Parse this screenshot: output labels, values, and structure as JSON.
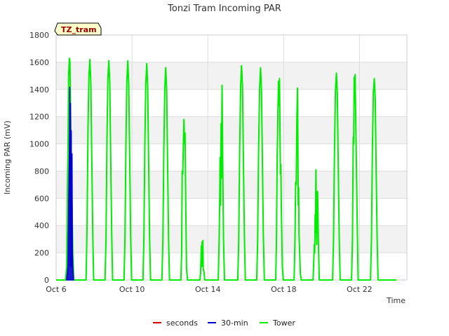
{
  "chart_data": {
    "type": "line",
    "title": "Tonzi Tram Incoming PAR",
    "xlabel": "Time",
    "ylabel": "Incoming PAR (mV)",
    "annotation": "TZ_tram",
    "xlim_days": [
      6,
      24.5
    ],
    "ylim": [
      0,
      1800
    ],
    "y_ticks": [
      0,
      200,
      400,
      600,
      800,
      1000,
      1200,
      1400,
      1600,
      1800
    ],
    "x_ticks": [
      {
        "day": 6,
        "label": "Oct 6"
      },
      {
        "day": 10,
        "label": "Oct 10"
      },
      {
        "day": 14,
        "label": "Oct 14"
      },
      {
        "day": 18,
        "label": "Oct 18"
      },
      {
        "day": 22,
        "label": "Oct 22"
      }
    ],
    "grid": true,
    "legend_position": "bottom-center",
    "colors": {
      "seconds": "#cc0000",
      "30-min": "#0000cc",
      "Tower": "#00ee00",
      "band": "#f2f2f2",
      "grid": "#dddddd",
      "annotation_fill": "#ffffcc",
      "annotation_text": "#990000"
    },
    "series": [
      {
        "name": "seconds",
        "color": "#cc0000",
        "points": []
      },
      {
        "name": "30-min",
        "color": "#0000cc",
        "dense": true,
        "points": [
          [
            6.55,
            0
          ],
          [
            6.62,
            100
          ],
          [
            6.66,
            600
          ],
          [
            6.7,
            1000
          ],
          [
            6.72,
            1420
          ],
          [
            6.74,
            100
          ],
          [
            6.76,
            1300
          ],
          [
            6.78,
            100
          ],
          [
            6.8,
            1100
          ],
          [
            6.82,
            90
          ],
          [
            6.84,
            930
          ],
          [
            6.86,
            200
          ],
          [
            6.88,
            100
          ],
          [
            6.92,
            0
          ]
        ]
      },
      {
        "name": "Tower",
        "color": "#00ee00",
        "points": [
          [
            6.0,
            0
          ],
          [
            6.4,
            0
          ],
          [
            6.5,
            0
          ],
          [
            6.56,
            100
          ],
          [
            6.6,
            700
          ],
          [
            6.63,
            1000
          ],
          [
            6.66,
            1500
          ],
          [
            6.7,
            1630
          ],
          [
            6.73,
            1600
          ],
          [
            6.77,
            1150
          ],
          [
            6.82,
            700
          ],
          [
            6.88,
            200
          ],
          [
            6.93,
            0
          ],
          [
            7.48,
            0
          ],
          [
            7.58,
            0
          ],
          [
            7.63,
            400
          ],
          [
            7.68,
            1100
          ],
          [
            7.73,
            1500
          ],
          [
            7.78,
            1620
          ],
          [
            7.83,
            1450
          ],
          [
            7.88,
            900
          ],
          [
            7.93,
            350
          ],
          [
            7.98,
            0
          ],
          [
            8.45,
            0
          ],
          [
            8.58,
            0
          ],
          [
            8.63,
            300
          ],
          [
            8.68,
            1000
          ],
          [
            8.73,
            1480
          ],
          [
            8.78,
            1610
          ],
          [
            8.83,
            1450
          ],
          [
            8.88,
            900
          ],
          [
            8.93,
            350
          ],
          [
            8.98,
            0
          ],
          [
            9.45,
            0
          ],
          [
            9.58,
            0
          ],
          [
            9.63,
            300
          ],
          [
            9.68,
            1000
          ],
          [
            9.73,
            1460
          ],
          [
            9.78,
            1610
          ],
          [
            9.83,
            1440
          ],
          [
            9.88,
            880
          ],
          [
            9.93,
            330
          ],
          [
            9.98,
            0
          ],
          [
            10.45,
            0
          ],
          [
            10.58,
            0
          ],
          [
            10.63,
            300
          ],
          [
            10.68,
            1000
          ],
          [
            10.73,
            1440
          ],
          [
            10.78,
            1590
          ],
          [
            10.83,
            1420
          ],
          [
            10.88,
            860
          ],
          [
            10.93,
            320
          ],
          [
            10.98,
            0
          ],
          [
            11.45,
            0
          ],
          [
            11.58,
            0
          ],
          [
            11.63,
            300
          ],
          [
            11.68,
            950
          ],
          [
            11.73,
            1400
          ],
          [
            11.78,
            1560
          ],
          [
            11.83,
            1400
          ],
          [
            11.88,
            850
          ],
          [
            11.93,
            300
          ],
          [
            11.98,
            0
          ],
          [
            12.45,
            0
          ],
          [
            12.58,
            0
          ],
          [
            12.62,
            200
          ],
          [
            12.65,
            800
          ],
          [
            12.68,
            780
          ],
          [
            12.71,
            1000
          ],
          [
            12.74,
            1180
          ],
          [
            12.77,
            1000
          ],
          [
            12.8,
            1080
          ],
          [
            12.84,
            500
          ],
          [
            12.88,
            80
          ],
          [
            12.93,
            0
          ],
          [
            13.45,
            0
          ],
          [
            13.58,
            0
          ],
          [
            13.62,
            50
          ],
          [
            13.66,
            250
          ],
          [
            13.68,
            100
          ],
          [
            13.7,
            280
          ],
          [
            13.72,
            180
          ],
          [
            13.74,
            290
          ],
          [
            13.76,
            80
          ],
          [
            13.8,
            60
          ],
          [
            13.84,
            0
          ],
          [
            14.45,
            0
          ],
          [
            14.55,
            0
          ],
          [
            14.6,
            300
          ],
          [
            14.63,
            600
          ],
          [
            14.65,
            900
          ],
          [
            14.67,
            550
          ],
          [
            14.7,
            1150
          ],
          [
            14.72,
            750
          ],
          [
            14.75,
            1430
          ],
          [
            14.79,
            800
          ],
          [
            14.83,
            300
          ],
          [
            14.88,
            0
          ],
          [
            15.45,
            0
          ],
          [
            15.58,
            0
          ],
          [
            15.63,
            300
          ],
          [
            15.68,
            950
          ],
          [
            15.73,
            1420
          ],
          [
            15.78,
            1575
          ],
          [
            15.83,
            1420
          ],
          [
            15.88,
            860
          ],
          [
            15.93,
            320
          ],
          [
            15.98,
            0
          ],
          [
            16.45,
            0
          ],
          [
            16.58,
            0
          ],
          [
            16.63,
            300
          ],
          [
            16.68,
            950
          ],
          [
            16.73,
            1400
          ],
          [
            16.78,
            1560
          ],
          [
            16.83,
            1400
          ],
          [
            16.88,
            850
          ],
          [
            16.93,
            320
          ],
          [
            16.98,
            0
          ],
          [
            17.45,
            0
          ],
          [
            17.58,
            0
          ],
          [
            17.62,
            300
          ],
          [
            17.66,
            900
          ],
          [
            17.7,
            1250
          ],
          [
            17.73,
            1460
          ],
          [
            17.75,
            1280
          ],
          [
            17.78,
            1480
          ],
          [
            17.8,
            1200
          ],
          [
            17.83,
            780
          ],
          [
            17.85,
            850
          ],
          [
            17.88,
            500
          ],
          [
            17.93,
            100
          ],
          [
            17.98,
            0
          ],
          [
            18.45,
            0
          ],
          [
            18.55,
            0
          ],
          [
            18.6,
            300
          ],
          [
            18.63,
            720
          ],
          [
            18.66,
            700
          ],
          [
            18.7,
            1200
          ],
          [
            18.73,
            1410
          ],
          [
            18.75,
            1000
          ],
          [
            18.77,
            550
          ],
          [
            18.79,
            680
          ],
          [
            18.81,
            340
          ],
          [
            18.84,
            230
          ],
          [
            18.88,
            50
          ],
          [
            18.93,
            0
          ],
          [
            19.45,
            0
          ],
          [
            19.55,
            0
          ],
          [
            19.58,
            100
          ],
          [
            19.62,
            260
          ],
          [
            19.64,
            200
          ],
          [
            19.66,
            480
          ],
          [
            19.68,
            350
          ],
          [
            19.7,
            810
          ],
          [
            19.72,
            550
          ],
          [
            19.74,
            260
          ],
          [
            19.76,
            640
          ],
          [
            19.79,
            650
          ],
          [
            19.83,
            300
          ],
          [
            19.88,
            0
          ],
          [
            20.45,
            0
          ],
          [
            20.58,
            0
          ],
          [
            20.63,
            300
          ],
          [
            20.68,
            950
          ],
          [
            20.73,
            1380
          ],
          [
            20.78,
            1520
          ],
          [
            20.83,
            1370
          ],
          [
            20.88,
            830
          ],
          [
            20.93,
            310
          ],
          [
            20.98,
            0
          ],
          [
            21.45,
            0
          ],
          [
            21.58,
            0
          ],
          [
            21.63,
            300
          ],
          [
            21.67,
            1050
          ],
          [
            21.69,
            1000
          ],
          [
            21.72,
            1490
          ],
          [
            21.74,
            1300
          ],
          [
            21.77,
            1510
          ],
          [
            21.8,
            1200
          ],
          [
            21.84,
            820
          ],
          [
            21.88,
            420
          ],
          [
            21.93,
            0
          ],
          [
            22.45,
            0
          ],
          [
            22.58,
            0
          ],
          [
            22.63,
            300
          ],
          [
            22.68,
            950
          ],
          [
            22.73,
            1380
          ],
          [
            22.78,
            1480
          ],
          [
            22.83,
            1330
          ],
          [
            22.88,
            800
          ],
          [
            22.93,
            300
          ],
          [
            22.98,
            0
          ],
          [
            23.45,
            0
          ],
          [
            23.95,
            0
          ]
        ]
      }
    ]
  }
}
